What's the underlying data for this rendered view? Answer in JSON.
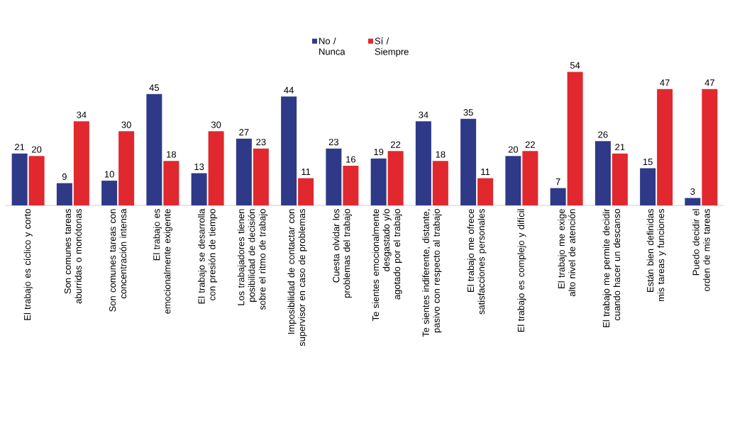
{
  "chart_data": {
    "type": "bar",
    "categories": [
      "El trabajo es cíclico y corto",
      "Son comunes tareas aburridas o monótonas",
      "Son comunes tareas con concentración intensa",
      "El trabajo es emocionalmente exigente",
      "El trabajo se desarrolla con presión de tiempo",
      "Los trabajadores tienen posibilidad de decisión sobre el ritmo de trabajo",
      "Imposibilidad de contactar con supervisor en caso de problemas",
      "Cuesta olvidar los problemas del trabajo",
      "Te sientes emocionalmente desgastado y/o agotado por el trabajo",
      "Te sientes indiferente, distante, pasivo con respecto al trabajo",
      "El trabajo me ofrece satisfacciones personales",
      "El trabajo es complejo y difícil",
      "El trabajo me exige alto nivel de atención",
      "El trabajo me permite decidir cuando hacer un descanso",
      "Están bien definidas mis tareas y funciones",
      "Puedo decidir el orden de mis tareas"
    ],
    "series": [
      {
        "name": "No / Nunca",
        "color": "#2e3a87",
        "values": [
          21,
          9,
          10,
          45,
          13,
          27,
          44,
          23,
          19,
          34,
          35,
          20,
          7,
          26,
          15,
          3
        ]
      },
      {
        "name": "Sí / Siempre",
        "color": "#e0282e",
        "values": [
          20,
          34,
          30,
          18,
          30,
          23,
          11,
          16,
          22,
          18,
          11,
          22,
          54,
          21,
          47,
          47
        ]
      }
    ],
    "data_labels": true,
    "legend": "top"
  }
}
